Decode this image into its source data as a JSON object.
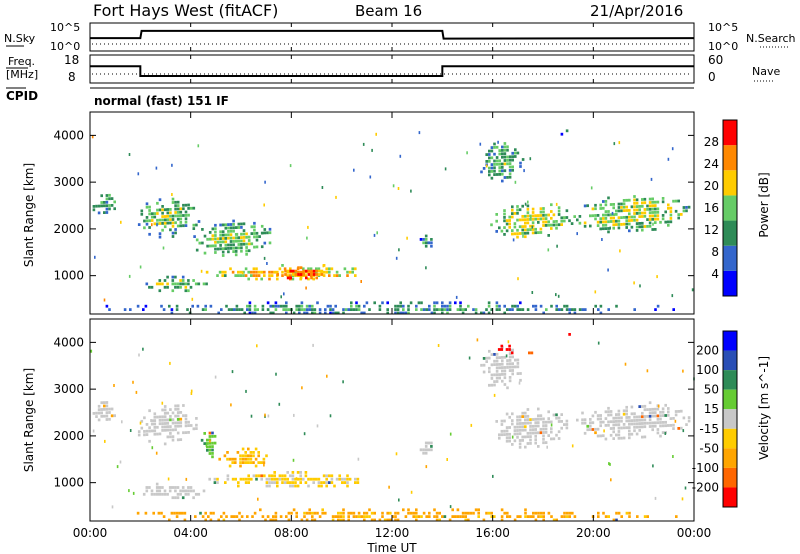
{
  "header": {
    "station": "Fort Hays West (fitACF)",
    "beam": "Beam 16",
    "date": "21/Apr/2016"
  },
  "top_panels": {
    "nsky_label": "N.Sky",
    "nsearch_label": "N.Search",
    "nsky_ticks": [
      "10^5",
      "10^0"
    ],
    "nsearch_ticks": [
      "10^5",
      "10^0"
    ],
    "freq_label_1": "Freq.",
    "freq_label_2": "[MHz]",
    "freq_ticks": [
      "18",
      "8"
    ],
    "nave_label": "Nave",
    "nave_ticks": [
      "60",
      "0"
    ],
    "cpid_label": "CPID",
    "cpid_text": "normal (fast) 151 IF"
  },
  "chart_data": [
    {
      "type": "heatmap",
      "name": "power",
      "ylabel": "Slant Range [km]",
      "xlabel": "Time UT",
      "xlim": [
        0,
        24
      ],
      "ylim": [
        180,
        4500
      ],
      "yticks": [
        1000,
        2000,
        3000,
        4000
      ],
      "colorbar": {
        "label": "Power [dB]",
        "ticks": [
          4,
          8,
          12,
          16,
          20,
          24,
          28
        ],
        "range": [
          0,
          32
        ],
        "colors": [
          "#0000ff",
          "#3366cc",
          "#2e8b57",
          "#66cc66",
          "#ffcc00",
          "#ff8800",
          "#ff0000"
        ]
      },
      "echo_regions": [
        {
          "t0": 0.0,
          "t1": 1.1,
          "r0": 2300,
          "r1": 2800,
          "level": 14
        },
        {
          "t0": 1.8,
          "t1": 4.3,
          "r0": 1800,
          "r1": 2700,
          "level": 16
        },
        {
          "t0": 3.9,
          "t1": 7.4,
          "r0": 1350,
          "r1": 2150,
          "level": 16
        },
        {
          "t0": 2.0,
          "t1": 4.6,
          "r0": 680,
          "r1": 1000,
          "level": 16
        },
        {
          "t0": 4.6,
          "t1": 11.2,
          "r0": 920,
          "r1": 1250,
          "level": 22
        },
        {
          "t0": 7.2,
          "t1": 9.6,
          "r0": 950,
          "r1": 1200,
          "level": 28
        },
        {
          "t0": 13.1,
          "t1": 13.6,
          "r0": 1600,
          "r1": 1950,
          "level": 12
        },
        {
          "t0": 15.4,
          "t1": 17.2,
          "r0": 3000,
          "r1": 3900,
          "level": 14
        },
        {
          "t0": 15.8,
          "t1": 19.1,
          "r0": 1750,
          "r1": 2550,
          "level": 18
        },
        {
          "t0": 19.0,
          "t1": 24.0,
          "r0": 1900,
          "r1": 2650,
          "level": 18
        },
        {
          "t0": 18.7,
          "t1": 19.1,
          "r0": 4000,
          "r1": 4200,
          "level": 10
        },
        {
          "t0": 0.0,
          "t1": 24.0,
          "r0": 200,
          "r1": 450,
          "level": 12
        }
      ]
    },
    {
      "type": "heatmap",
      "name": "velocity",
      "ylabel": "Slant Range [km]",
      "xlabel": "Time UT",
      "xlim": [
        0,
        24
      ],
      "ylim": [
        180,
        4500
      ],
      "yticks": [
        1000,
        2000,
        3000,
        4000
      ],
      "xticks": [
        "00:00",
        "04:00",
        "08:00",
        "12:00",
        "16:00",
        "20:00",
        "00:00"
      ],
      "colorbar": {
        "label": "Velocity [m s^-1]",
        "ticks": [
          "200",
          "100",
          "50",
          "15",
          "-15",
          "-50",
          "-100",
          "-200"
        ],
        "colors": [
          "#0000ff",
          "#2a4fb5",
          "#2e8b57",
          "#66cc33",
          "#c8c8c8",
          "#ffcc00",
          "#ffa500",
          "#ff6600",
          "#ff0000"
        ]
      },
      "echo_regions": [
        {
          "t0": 0.0,
          "t1": 1.1,
          "r0": 2300,
          "r1": 2800,
          "v": 0
        },
        {
          "t0": 1.8,
          "t1": 4.3,
          "r0": 1800,
          "r1": 2700,
          "v": 0
        },
        {
          "t0": 4.3,
          "t1": 5.0,
          "r0": 1550,
          "r1": 2150,
          "v": 30
        },
        {
          "t0": 5.0,
          "t1": 7.4,
          "r0": 1350,
          "r1": 1750,
          "v": -30
        },
        {
          "t0": 2.0,
          "t1": 4.6,
          "r0": 680,
          "r1": 1000,
          "v": 0
        },
        {
          "t0": 4.6,
          "t1": 11.2,
          "r0": 920,
          "r1": 1250,
          "v": -20
        },
        {
          "t0": 0.0,
          "t1": 24.0,
          "r0": 200,
          "r1": 450,
          "v": -40
        },
        {
          "t0": 13.1,
          "t1": 13.6,
          "r0": 1600,
          "r1": 1950,
          "v": 0
        },
        {
          "t0": 15.4,
          "t1": 17.2,
          "r0": 3000,
          "r1": 3900,
          "v": 0
        },
        {
          "t0": 15.8,
          "t1": 19.1,
          "r0": 1750,
          "r1": 2550,
          "v": 0
        },
        {
          "t0": 19.0,
          "t1": 24.0,
          "r0": 1900,
          "r1": 2650,
          "v": 0
        },
        {
          "t0": 16.0,
          "t1": 16.9,
          "r0": 3750,
          "r1": 3950,
          "v": -220
        },
        {
          "t0": 17.3,
          "t1": 17.6,
          "r0": 3750,
          "r1": 3950,
          "v": -120
        },
        {
          "t0": 18.9,
          "t1": 19.1,
          "r0": 4050,
          "r1": 4200,
          "v": -200
        }
      ]
    },
    {
      "type": "line",
      "name": "nsky",
      "x": [
        0,
        2,
        2.05,
        14,
        14.05,
        24
      ],
      "y": [
        2.3,
        2.3,
        3.6,
        3.6,
        2.2,
        2.3
      ]
    },
    {
      "type": "line",
      "name": "frequency",
      "x": [
        0,
        2,
        2,
        14,
        14,
        24
      ],
      "y": [
        14,
        14,
        10.5,
        10.5,
        14,
        14
      ]
    }
  ]
}
